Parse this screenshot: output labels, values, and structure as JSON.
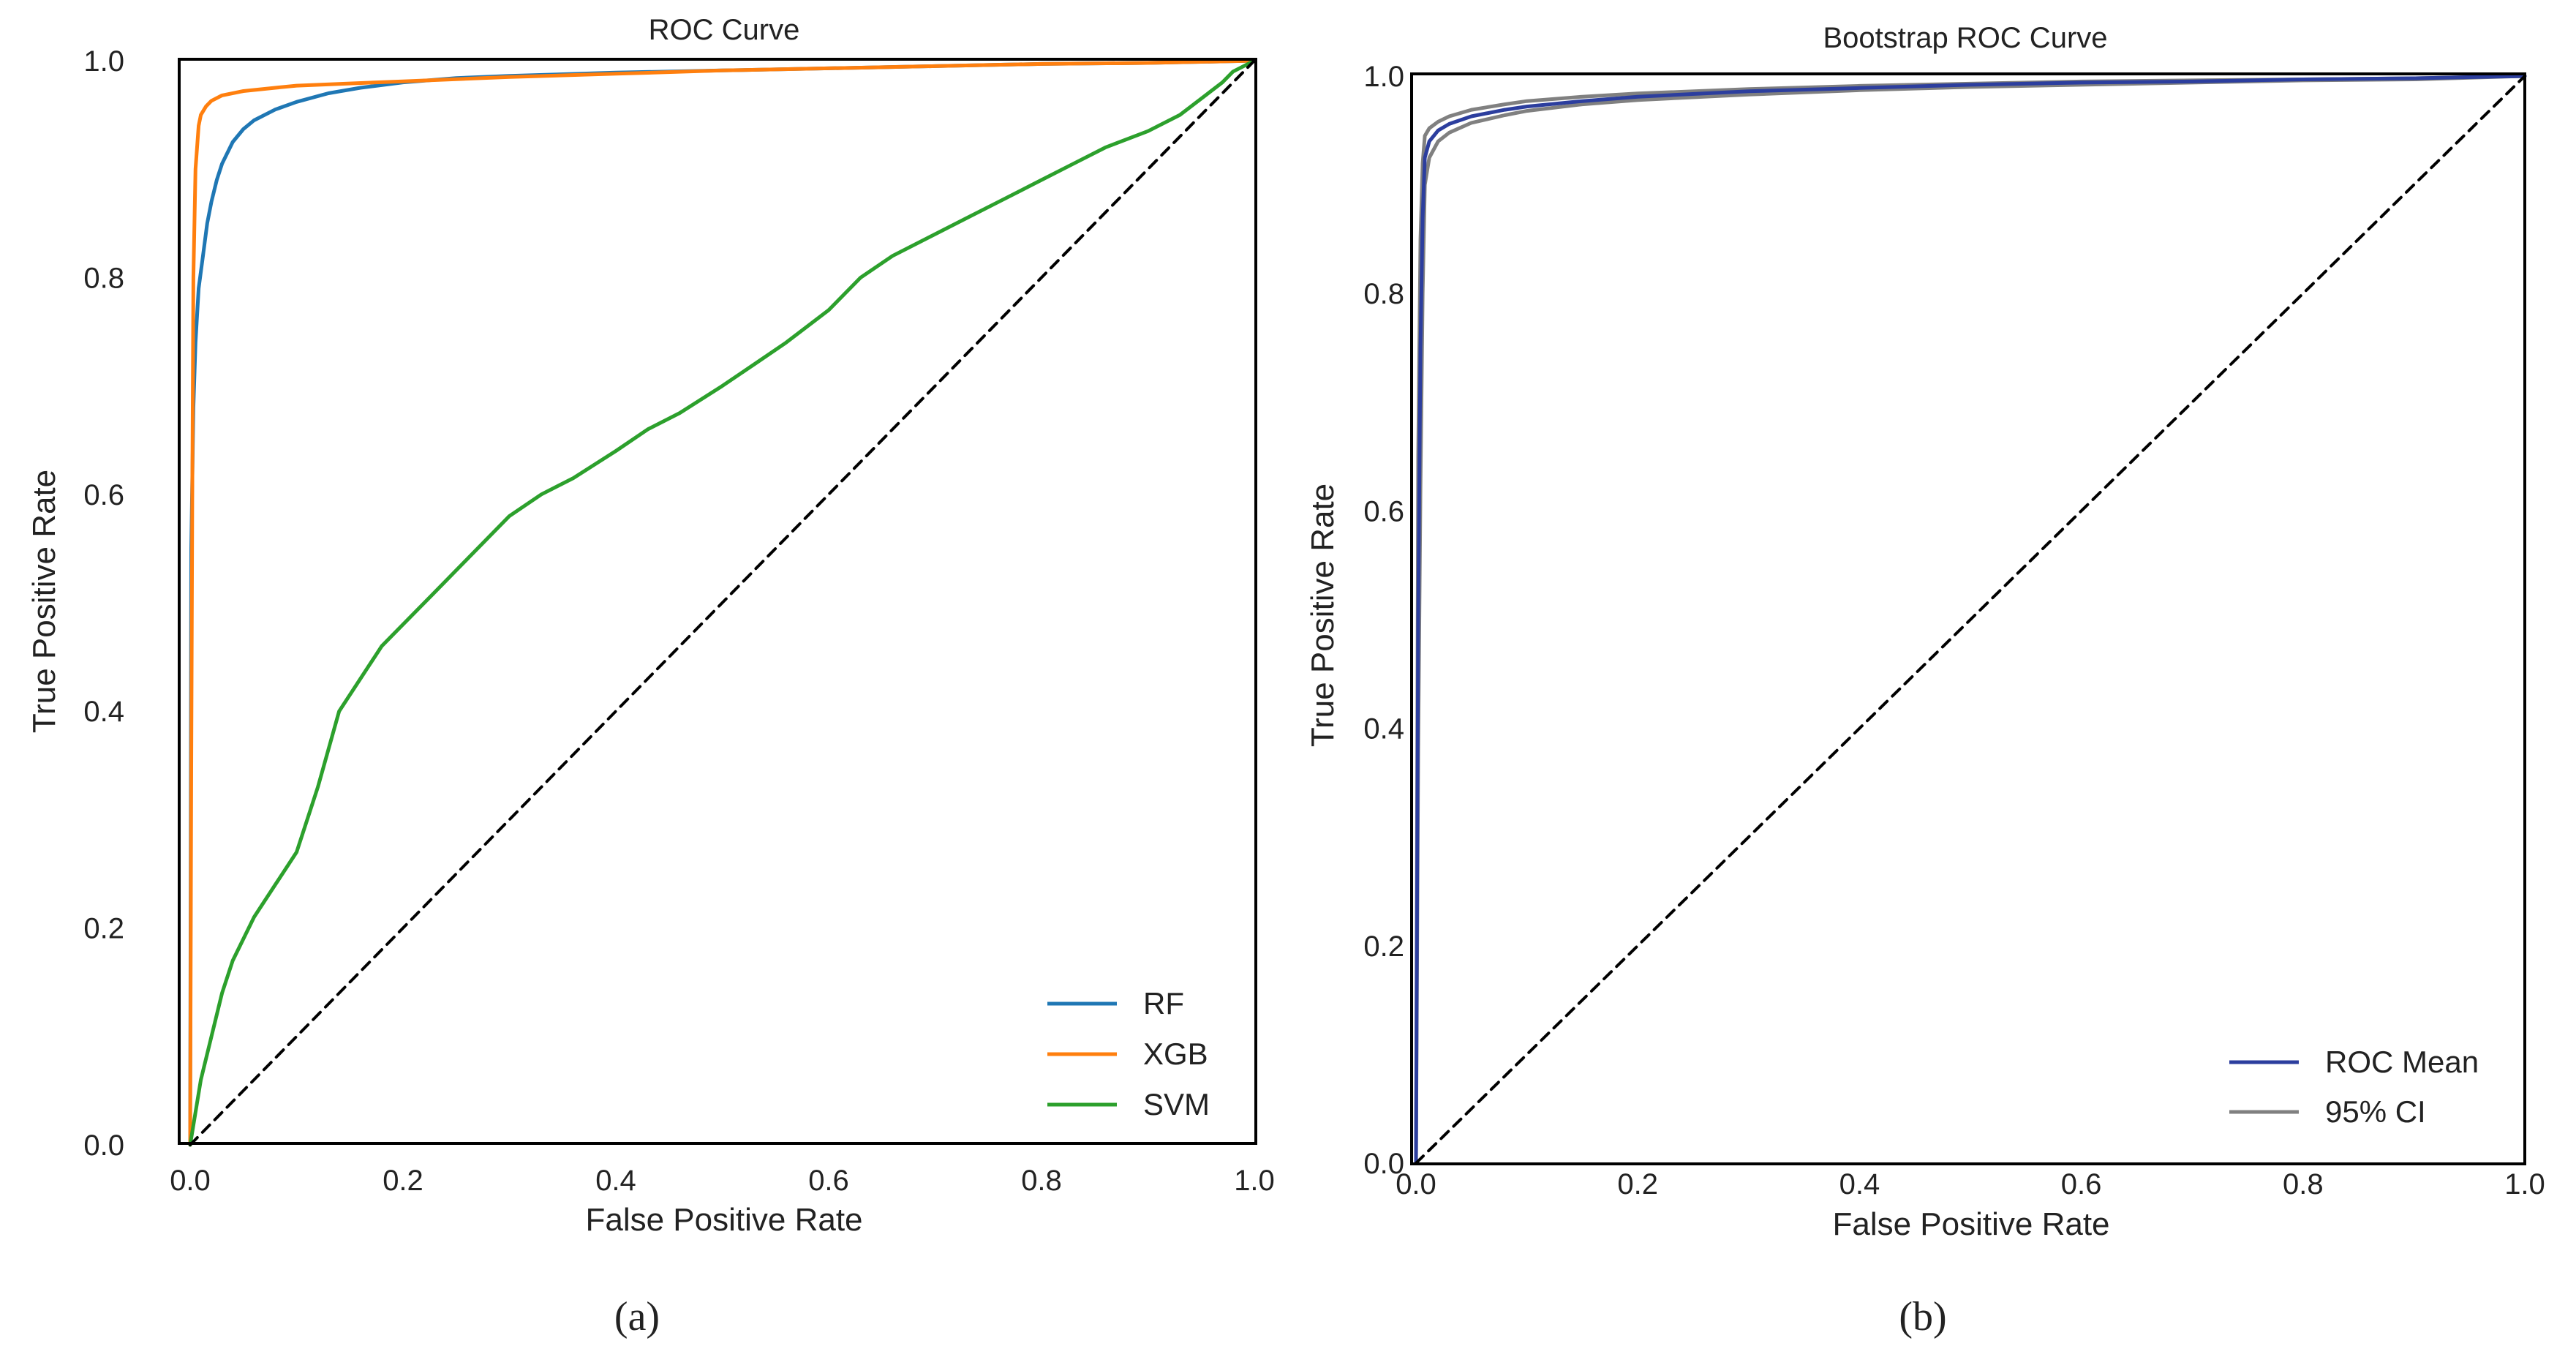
{
  "chart_data": [
    {
      "type": "line",
      "panel_label": "(a)",
      "title": "ROC Curve",
      "xlabel": "False Positive Rate",
      "ylabel": "True Positive Rate",
      "xlim": [
        0.0,
        1.0
      ],
      "ylim": [
        0.0,
        1.0
      ],
      "xticks": [
        "0.0",
        "0.2",
        "0.4",
        "0.6",
        "0.8",
        "1.0"
      ],
      "yticks": [
        "0.0",
        "0.2",
        "0.4",
        "0.6",
        "0.8",
        "1.0"
      ],
      "grid": false,
      "legend_position": "bottom-right",
      "series": [
        {
          "name": "RF",
          "color": "#1f77b4",
          "x": [
            0.0,
            0.001,
            0.003,
            0.005,
            0.008,
            0.012,
            0.016,
            0.02,
            0.025,
            0.03,
            0.04,
            0.05,
            0.06,
            0.08,
            0.1,
            0.13,
            0.16,
            0.2,
            0.25,
            0.3,
            0.4,
            0.5,
            0.6,
            0.7,
            0.8,
            0.9,
            0.95,
            1.0
          ],
          "y": [
            0.0,
            0.55,
            0.68,
            0.74,
            0.79,
            0.82,
            0.85,
            0.87,
            0.89,
            0.905,
            0.925,
            0.937,
            0.945,
            0.955,
            0.962,
            0.97,
            0.975,
            0.98,
            0.984,
            0.986,
            0.989,
            0.991,
            0.993,
            0.995,
            0.997,
            0.998,
            0.999,
            1.0
          ]
        },
        {
          "name": "XGB",
          "color": "#ff7f0e",
          "x": [
            0.0,
            0.001,
            0.002,
            0.003,
            0.005,
            0.008,
            0.01,
            0.015,
            0.02,
            0.03,
            0.05,
            0.08,
            0.1,
            0.15,
            0.2,
            0.3,
            0.4,
            0.5,
            0.6,
            0.7,
            0.8,
            0.9,
            1.0
          ],
          "y": [
            0.0,
            0.35,
            0.6,
            0.8,
            0.9,
            0.94,
            0.95,
            0.958,
            0.963,
            0.968,
            0.972,
            0.975,
            0.977,
            0.979,
            0.981,
            0.985,
            0.988,
            0.991,
            0.993,
            0.995,
            0.997,
            0.998,
            1.0
          ]
        },
        {
          "name": "SVM",
          "color": "#2ca02c",
          "x": [
            0.0,
            0.01,
            0.02,
            0.03,
            0.04,
            0.05,
            0.06,
            0.08,
            0.1,
            0.12,
            0.14,
            0.16,
            0.18,
            0.2,
            0.23,
            0.26,
            0.3,
            0.33,
            0.36,
            0.4,
            0.43,
            0.46,
            0.5,
            0.53,
            0.56,
            0.6,
            0.63,
            0.66,
            0.7,
            0.73,
            0.76,
            0.8,
            0.83,
            0.86,
            0.9,
            0.93,
            0.95,
            0.97,
            0.98,
            1.0
          ],
          "y": [
            0.0,
            0.06,
            0.1,
            0.14,
            0.17,
            0.19,
            0.21,
            0.24,
            0.27,
            0.33,
            0.4,
            0.43,
            0.46,
            0.48,
            0.51,
            0.54,
            0.58,
            0.6,
            0.615,
            0.64,
            0.66,
            0.675,
            0.7,
            0.72,
            0.74,
            0.77,
            0.8,
            0.82,
            0.84,
            0.855,
            0.87,
            0.89,
            0.905,
            0.92,
            0.935,
            0.95,
            0.965,
            0.98,
            0.99,
            1.0
          ]
        },
        {
          "name": "chance",
          "color": "#000000",
          "dashed": true,
          "x": [
            0.0,
            1.0
          ],
          "y": [
            0.0,
            1.0
          ]
        }
      ]
    },
    {
      "type": "line",
      "panel_label": "(b)",
      "title": "Bootstrap ROC Curve",
      "xlabel": "False Positive Rate",
      "ylabel": "True Positive Rate",
      "xlim": [
        0.0,
        1.0
      ],
      "ylim": [
        0.0,
        1.0
      ],
      "xticks": [
        "0.0",
        "0.2",
        "0.4",
        "0.6",
        "0.8",
        "1.0"
      ],
      "yticks": [
        "0.0",
        "0.2",
        "0.4",
        "0.6",
        "0.8",
        "1.0"
      ],
      "grid": false,
      "legend_position": "bottom-right",
      "series": [
        {
          "name": "95% CI",
          "color": "#808080",
          "x": [
            0.0,
            0.002,
            0.004,
            0.006,
            0.008,
            0.012,
            0.02,
            0.03,
            0.05,
            0.08,
            0.1,
            0.15,
            0.2,
            0.3,
            0.4,
            0.5,
            0.6,
            0.7,
            0.8,
            0.9,
            1.0
          ],
          "y": [
            0.0,
            0.65,
            0.85,
            0.92,
            0.945,
            0.952,
            0.958,
            0.963,
            0.969,
            0.974,
            0.977,
            0.981,
            0.984,
            0.988,
            0.991,
            0.993,
            0.995,
            0.996,
            0.997,
            0.998,
            1.0
          ]
        },
        {
          "name": "95% CI lower",
          "color": "#808080",
          "x": [
            0.0,
            0.002,
            0.004,
            0.006,
            0.008,
            0.012,
            0.02,
            0.03,
            0.05,
            0.08,
            0.1,
            0.15,
            0.2,
            0.3,
            0.4,
            0.5,
            0.6,
            0.7,
            0.8,
            0.9,
            1.0
          ],
          "y": [
            0.0,
            0.38,
            0.62,
            0.8,
            0.9,
            0.925,
            0.94,
            0.948,
            0.957,
            0.964,
            0.968,
            0.974,
            0.978,
            0.983,
            0.987,
            0.99,
            0.992,
            0.994,
            0.996,
            0.997,
            1.0
          ]
        },
        {
          "name": "ROC Mean",
          "color": "#2c3e9e",
          "x": [
            0.0,
            0.002,
            0.004,
            0.006,
            0.008,
            0.012,
            0.02,
            0.03,
            0.05,
            0.08,
            0.1,
            0.15,
            0.2,
            0.3,
            0.4,
            0.5,
            0.6,
            0.7,
            0.8,
            0.9,
            1.0
          ],
          "y": [
            0.0,
            0.5,
            0.75,
            0.87,
            0.925,
            0.94,
            0.95,
            0.956,
            0.963,
            0.969,
            0.972,
            0.977,
            0.981,
            0.986,
            0.989,
            0.992,
            0.994,
            0.995,
            0.997,
            0.998,
            1.0
          ]
        },
        {
          "name": "chance",
          "color": "#000000",
          "dashed": true,
          "x": [
            0.0,
            1.0
          ],
          "y": [
            0.0,
            1.0
          ]
        }
      ],
      "legend_entries": [
        {
          "name": "ROC Mean",
          "color": "#2c3e9e"
        },
        {
          "name": "95% CI",
          "color": "#808080"
        }
      ]
    }
  ]
}
